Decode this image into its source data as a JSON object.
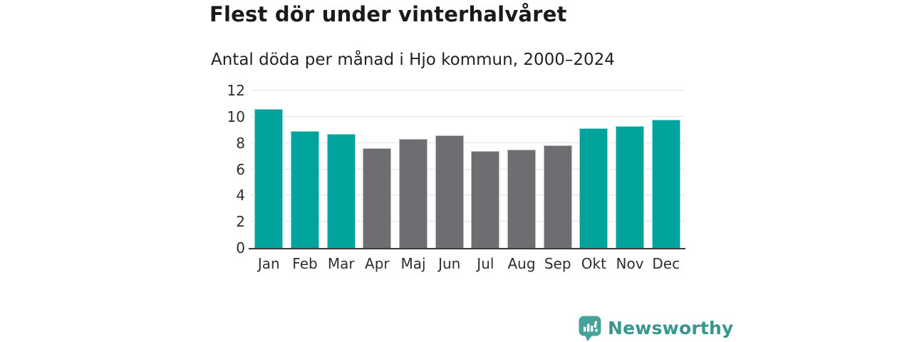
{
  "header": {
    "title": "Flest dör under vinterhalvåret",
    "subtitle": "Antal döda per månad i Hjo kommun, 2000–2024"
  },
  "chart_data": {
    "type": "bar",
    "title": "Flest dör under vinterhalvåret",
    "subtitle": "Antal döda per månad i Hjo kommun, 2000–2024",
    "categories": [
      "Jan",
      "Feb",
      "Mar",
      "Apr",
      "Maj",
      "Jun",
      "Jul",
      "Aug",
      "Sep",
      "Okt",
      "Nov",
      "Dec"
    ],
    "values": [
      10.6,
      8.9,
      8.7,
      7.6,
      8.3,
      8.6,
      7.4,
      7.5,
      7.8,
      9.1,
      9.3,
      9.8
    ],
    "bar_color_keys": [
      "teal",
      "teal",
      "teal",
      "gray",
      "gray",
      "gray",
      "gray",
      "gray",
      "gray",
      "teal",
      "teal",
      "teal"
    ],
    "colors": {
      "teal": "#00a49c",
      "gray": "#6e6d72"
    },
    "ylim": [
      0,
      12
    ],
    "yticks": [
      0,
      2,
      4,
      6,
      8,
      10,
      12
    ],
    "grid": true,
    "legend": "none",
    "xlabel": "",
    "ylabel": ""
  },
  "footer": {
    "brand": "Newsworthy",
    "logo_icon": "bar-chart-speech-bubble-icon",
    "brand_color": "#3a958f",
    "icon_color": "#47a29b"
  }
}
